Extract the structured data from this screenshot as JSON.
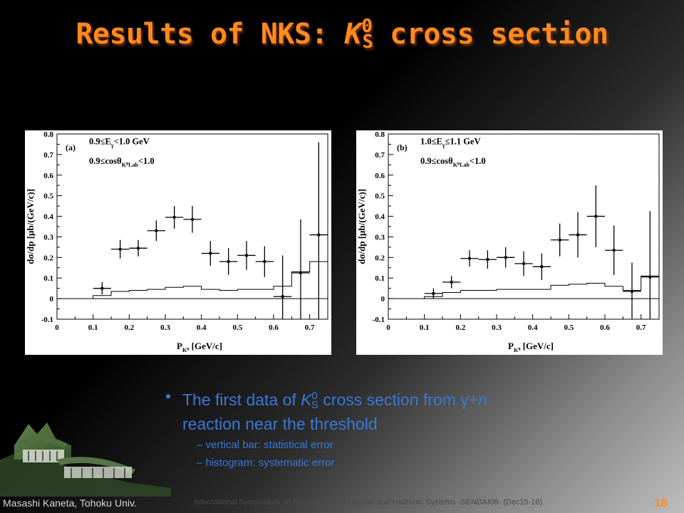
{
  "slide": {
    "title": {
      "prefix": "Results of NKS: ",
      "k": "K",
      "sup": "0",
      "sub": "S",
      "suffix": " cross section"
    },
    "bullet": {
      "line1_prefix": "The first data of ",
      "k": "K",
      "sup": "0",
      "sub": "S",
      "line1_mid": " cross section from ",
      "gamma": "γ",
      "plus": "+",
      "n": "n",
      "line2": "reaction near the threshold"
    },
    "sub_bullets": [
      "– vertical bar: statistical error",
      "– histogram: systematic error"
    ],
    "footer": {
      "author": "Masashi Kaneta, Tohoku Univ.",
      "conference": "International Symposium on Strangeness in Nuclear and Hadronic Systems -SENDAI08- (Dec15-18)",
      "page": "18"
    }
  },
  "chart_data": [
    {
      "type": "scatter",
      "panel_label": "(a)",
      "ann1_main": "0.9≤E",
      "ann1_sub": "γ",
      "ann1_tail": "<1.0 GeV",
      "ann2_main": "0.9≤cosθ",
      "ann2_sub": "K⁰Lab",
      "ann2_tail": "<1.0",
      "xlabel_main": "P",
      "xlabel_sub": "K⁰",
      "xlabel_tail": " [GeV/c]",
      "ylabel": "dσ/dp [μb/(GeV/c)]",
      "xlim": [
        0,
        0.75
      ],
      "ylim": [
        -0.1,
        0.8
      ],
      "xticks": [
        "0",
        "0.1",
        "0.2",
        "0.3",
        "0.4",
        "0.5",
        "0.6",
        "0.7"
      ],
      "xtick_values": [
        0,
        0.1,
        0.2,
        0.3,
        0.4,
        0.5,
        0.6,
        0.7
      ],
      "yticks": [
        "-0.1",
        "0",
        "0.1",
        "0.2",
        "0.3",
        "0.4",
        "0.5",
        "0.6",
        "0.7",
        "0.8"
      ],
      "ytick_values": [
        -0.1,
        0,
        0.1,
        0.2,
        0.3,
        0.4,
        0.5,
        0.6,
        0.7,
        0.8
      ],
      "points": [
        {
          "x": 0.125,
          "y": 0.05,
          "yerr": 0.03
        },
        {
          "x": 0.175,
          "y": 0.24,
          "yerr": 0.045
        },
        {
          "x": 0.225,
          "y": 0.245,
          "yerr": 0.04
        },
        {
          "x": 0.275,
          "y": 0.33,
          "yerr": 0.05
        },
        {
          "x": 0.325,
          "y": 0.395,
          "yerr": 0.055
        },
        {
          "x": 0.375,
          "y": 0.385,
          "yerr": 0.065
        },
        {
          "x": 0.425,
          "y": 0.22,
          "yerr": 0.06
        },
        {
          "x": 0.475,
          "y": 0.18,
          "yerr": 0.065
        },
        {
          "x": 0.525,
          "y": 0.21,
          "yerr": 0.07
        },
        {
          "x": 0.575,
          "y": 0.18,
          "yerr": 0.075
        },
        {
          "x": 0.625,
          "y": 0.01,
          "yerr": 0.2
        },
        {
          "x": 0.675,
          "y": 0.125,
          "yerr": 0.26
        },
        {
          "x": 0.725,
          "y": 0.31,
          "yerr": 0.45
        }
      ],
      "syst_hist": [
        {
          "x0": 0.1,
          "x1": 0.15,
          "y": 0.015
        },
        {
          "x0": 0.15,
          "x1": 0.2,
          "y": 0.035
        },
        {
          "x0": 0.2,
          "x1": 0.25,
          "y": 0.04
        },
        {
          "x0": 0.25,
          "x1": 0.3,
          "y": 0.045
        },
        {
          "x0": 0.3,
          "x1": 0.35,
          "y": 0.055
        },
        {
          "x0": 0.35,
          "x1": 0.4,
          "y": 0.06
        },
        {
          "x0": 0.4,
          "x1": 0.45,
          "y": 0.045
        },
        {
          "x0": 0.45,
          "x1": 0.5,
          "y": 0.04
        },
        {
          "x0": 0.5,
          "x1": 0.55,
          "y": 0.045
        },
        {
          "x0": 0.55,
          "x1": 0.6,
          "y": 0.045
        },
        {
          "x0": 0.6,
          "x1": 0.65,
          "y": 0.06
        },
        {
          "x0": 0.65,
          "x1": 0.7,
          "y": 0.13
        },
        {
          "x0": 0.7,
          "x1": 0.75,
          "y": 0.18
        }
      ]
    },
    {
      "type": "scatter",
      "panel_label": "(b)",
      "ann1_main": "1.0≤E",
      "ann1_sub": "γ",
      "ann1_tail": "≤1.1 GeV",
      "ann2_main": "0.9≤cosθ",
      "ann2_sub": "K⁰Lab",
      "ann2_tail": "<1.0",
      "xlabel_main": "P",
      "xlabel_sub": "K⁰",
      "xlabel_tail": " [GeV/c]",
      "ylabel": "dσ/dp [μb/(GeV/c)]",
      "xlim": [
        0,
        0.75
      ],
      "ylim": [
        -0.1,
        0.8
      ],
      "xticks": [
        "0",
        "0.1",
        "0.2",
        "0.3",
        "0.4",
        "0.5",
        "0.6",
        "0.7"
      ],
      "xtick_values": [
        0,
        0.1,
        0.2,
        0.3,
        0.4,
        0.5,
        0.6,
        0.7
      ],
      "yticks": [
        "-0.1",
        "0",
        "0.1",
        "0.2",
        "0.3",
        "0.4",
        "0.5",
        "0.6",
        "0.7",
        "0.8"
      ],
      "ytick_values": [
        -0.1,
        0,
        0.1,
        0.2,
        0.3,
        0.4,
        0.5,
        0.6,
        0.7,
        0.8
      ],
      "points": [
        {
          "x": 0.125,
          "y": 0.025,
          "yerr": 0.025
        },
        {
          "x": 0.175,
          "y": 0.08,
          "yerr": 0.03
        },
        {
          "x": 0.225,
          "y": 0.195,
          "yerr": 0.04
        },
        {
          "x": 0.275,
          "y": 0.19,
          "yerr": 0.045
        },
        {
          "x": 0.325,
          "y": 0.2,
          "yerr": 0.05
        },
        {
          "x": 0.375,
          "y": 0.17,
          "yerr": 0.06
        },
        {
          "x": 0.425,
          "y": 0.155,
          "yerr": 0.065
        },
        {
          "x": 0.475,
          "y": 0.285,
          "yerr": 0.08
        },
        {
          "x": 0.525,
          "y": 0.31,
          "yerr": 0.11
        },
        {
          "x": 0.575,
          "y": 0.4,
          "yerr": 0.15
        },
        {
          "x": 0.625,
          "y": 0.235,
          "yerr": 0.12
        },
        {
          "x": 0.675,
          "y": 0.035,
          "yerr": 0.14
        },
        {
          "x": 0.725,
          "y": 0.105,
          "yerr": 0.32
        }
      ],
      "syst_hist": [
        {
          "x0": 0.1,
          "x1": 0.15,
          "y": 0.01
        },
        {
          "x0": 0.15,
          "x1": 0.2,
          "y": 0.03
        },
        {
          "x0": 0.2,
          "x1": 0.25,
          "y": 0.04
        },
        {
          "x0": 0.25,
          "x1": 0.3,
          "y": 0.04
        },
        {
          "x0": 0.3,
          "x1": 0.35,
          "y": 0.045
        },
        {
          "x0": 0.35,
          "x1": 0.4,
          "y": 0.045
        },
        {
          "x0": 0.4,
          "x1": 0.45,
          "y": 0.045
        },
        {
          "x0": 0.45,
          "x1": 0.5,
          "y": 0.065
        },
        {
          "x0": 0.5,
          "x1": 0.55,
          "y": 0.07
        },
        {
          "x0": 0.55,
          "x1": 0.6,
          "y": 0.075
        },
        {
          "x0": 0.6,
          "x1": 0.65,
          "y": 0.06
        },
        {
          "x0": 0.65,
          "x1": 0.7,
          "y": 0.04
        },
        {
          "x0": 0.7,
          "x1": 0.75,
          "y": 0.11
        }
      ]
    }
  ]
}
